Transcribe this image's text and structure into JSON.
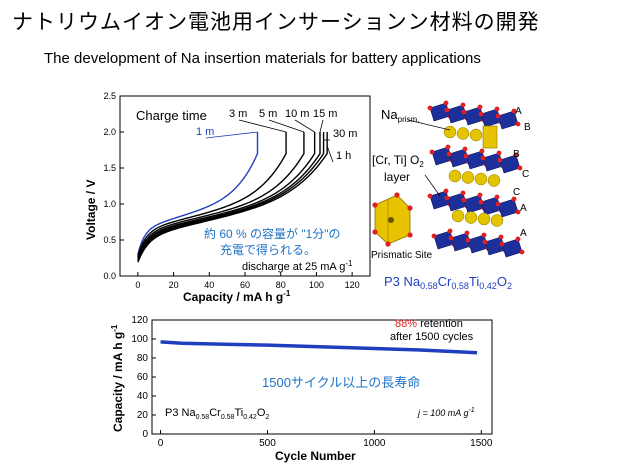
{
  "title_ja": "ナトリウムイオン電池用インサーションン材料の開発",
  "title_en": "The development of Na insertion materials for battery applications",
  "chart_data": [
    {
      "type": "line",
      "xlabel": "Capacity / mA h g",
      "xlabel_sup": "-1",
      "ylabel": "Voltage / V",
      "xlim": [
        -10,
        130
      ],
      "ylim": [
        0,
        2.5
      ],
      "xticks": [
        0,
        20,
        40,
        60,
        80,
        100,
        120
      ],
      "yticks": [
        "0.0",
        "0.5",
        "1.0",
        "1.5",
        "2.0",
        "2.5"
      ],
      "legend_title": "Charge time",
      "series": [
        {
          "name": "1 m",
          "color": "#1f3fbf",
          "cap": 67
        },
        {
          "name": "3 m",
          "color": "#000000",
          "cap": 83
        },
        {
          "name": "5 m",
          "color": "#000000",
          "cap": 93
        },
        {
          "name": "10 m",
          "color": "#000000",
          "cap": 99
        },
        {
          "name": "15 m",
          "color": "#000000",
          "cap": 102
        },
        {
          "name": "30 m",
          "color": "#000000",
          "cap": 104
        },
        {
          "name": "1 h",
          "color": "#000000",
          "cap": 106
        }
      ],
      "annotation_ja_line1": "約 60 % の容量が \"1分\"の",
      "annotation_ja_line2": "充電で得られる。",
      "annotation_color": "#1f73c8",
      "discharge_note": "discharge at 25 mA g",
      "discharge_note_sup": "-1"
    },
    {
      "type": "line",
      "xlabel": "Cycle Number",
      "ylabel": "Capacity / mA h g",
      "ylabel_sup": "-1",
      "xlim": [
        -40,
        1550
      ],
      "ylim": [
        0,
        120
      ],
      "xticks": [
        0,
        500,
        1000,
        1500
      ],
      "yticks": [
        0,
        20,
        40,
        60,
        80,
        100,
        120
      ],
      "series": [
        {
          "name": "",
          "color": "#1f3fbf",
          "x": [
            0,
            100,
            300,
            500,
            800,
            1000,
            1200,
            1400,
            1480
          ],
          "y": [
            97,
            95.5,
            94.5,
            93.5,
            91.5,
            90,
            88.5,
            86.5,
            85.5
          ]
        }
      ],
      "retention_pct": "88%",
      "retention_text": " retention",
      "retention_line2": "after 1500 cycles",
      "retention_color": "#e02020",
      "annotation_ja": "1500サイクル以上の長寿命",
      "material": "P3 Na0.58Cr0.58Ti0.42O2",
      "current": "j = 100 mA g",
      "current_sup": "-1"
    }
  ],
  "structure": {
    "na_label": "Na",
    "na_sub": "prism.",
    "layer_label_line1": "[Cr, Ti] O",
    "layer_label_sub": "2",
    "layer_label_line2": "layer",
    "prismatic_label": "Prismatic Site",
    "stacking": [
      "A",
      "B",
      "B",
      "C",
      "C",
      "A",
      "A"
    ],
    "formula_color": "#1f3fbf",
    "formula_parts": [
      "P3 Na",
      "0.58",
      "Cr",
      "0.58",
      "Ti",
      "0.42",
      "O",
      "2"
    ]
  }
}
